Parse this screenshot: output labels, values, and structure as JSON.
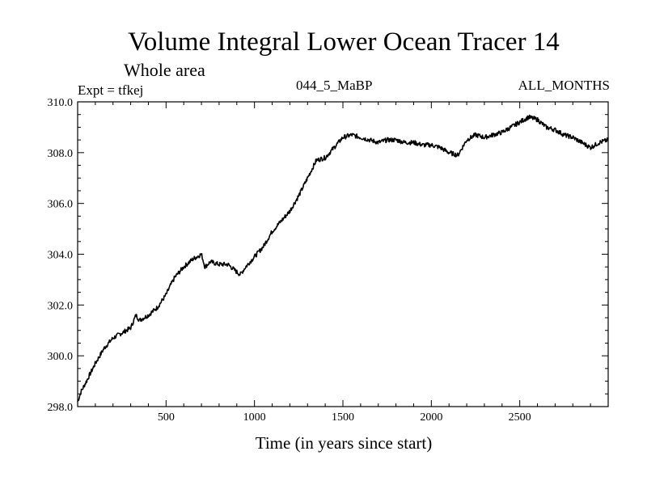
{
  "header": {
    "title": "Volume Integral Lower Ocean Tracer 14",
    "subtitle": "Whole area",
    "experiment": "Expt = tfkej",
    "period": "044_5_MaBP",
    "months": "ALL_MONTHS"
  },
  "chart_data": {
    "type": "line",
    "xlabel": "Time (in years since start)",
    "ylabel": "",
    "xlim": [
      0,
      3000
    ],
    "ylim": [
      298.0,
      310.0
    ],
    "x_ticks": [
      500,
      1000,
      1500,
      2000,
      2500
    ],
    "y_ticks": [
      "298.0",
      "300.0",
      "302.0",
      "304.0",
      "306.0",
      "308.0",
      "310.0"
    ],
    "line_color": "#000000",
    "series": [
      {
        "x": [
          0,
          20,
          50,
          100,
          150,
          200,
          250,
          300,
          330,
          350,
          400,
          450,
          500,
          520,
          550,
          600,
          650,
          700,
          720,
          750,
          800,
          850,
          900,
          920,
          950,
          1000,
          1050,
          1100,
          1150,
          1200,
          1250,
          1300,
          1350,
          1400,
          1450,
          1500,
          1550,
          1600,
          1650,
          1700,
          1750,
          1800,
          1850,
          1900,
          1950,
          2000,
          2050,
          2100,
          2150,
          2200,
          2250,
          2300,
          2350,
          2400,
          2450,
          2500,
          2550,
          2600,
          2650,
          2700,
          2750,
          2800,
          2850,
          2900,
          2950,
          3000
        ],
        "values": [
          298.2,
          298.6,
          299.0,
          299.7,
          300.3,
          300.7,
          300.9,
          301.1,
          301.6,
          301.4,
          301.6,
          301.9,
          302.4,
          302.7,
          303.1,
          303.5,
          303.8,
          304.0,
          303.5,
          303.7,
          303.6,
          303.6,
          303.3,
          303.2,
          303.5,
          303.9,
          304.3,
          304.9,
          305.3,
          305.7,
          306.3,
          307.0,
          307.7,
          307.8,
          308.2,
          308.6,
          308.7,
          308.6,
          308.5,
          308.4,
          308.5,
          308.5,
          308.4,
          308.4,
          308.3,
          308.3,
          308.2,
          308.0,
          307.9,
          308.5,
          308.7,
          308.6,
          308.7,
          308.8,
          309.0,
          309.2,
          309.4,
          309.3,
          309.0,
          308.9,
          308.7,
          308.6,
          308.4,
          308.2,
          308.4,
          308.5
        ]
      }
    ]
  }
}
